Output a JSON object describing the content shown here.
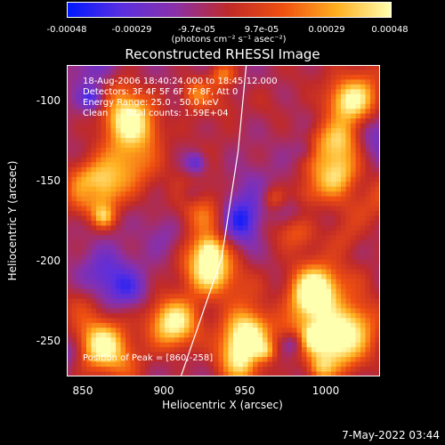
{
  "colorbar": {
    "ticks": [
      "-0.00048",
      "-0.00029",
      "-9.7e-05",
      "9.7e-05",
      "0.00029",
      "0.00048"
    ],
    "tick_values": [
      -0.00048,
      -0.00029,
      -9.7e-05,
      9.7e-05,
      0.00029,
      0.00048
    ],
    "unit": "(photons cm⁻² s⁻¹ asec⁻²)",
    "colors": [
      "#0018ff",
      "#5a2fe0",
      "#8a30a8",
      "#c02a28",
      "#f05010",
      "#ffb020",
      "#ffffb0"
    ]
  },
  "chart_data": {
    "type": "heatmap",
    "title": "Reconstructed RHESSI Image",
    "xlabel": "Heliocentric X (arcsec)",
    "ylabel": "Heliocentric Y (arcsec)",
    "xlim": [
      840,
      1032
    ],
    "ylim": [
      -273,
      -82
    ],
    "xticks": [
      850,
      900,
      950,
      1000
    ],
    "yticks": [
      -100,
      -150,
      -200,
      -250
    ],
    "limb_line": [
      [
        910,
        -273
      ],
      [
        935,
        -200
      ],
      [
        945,
        -135
      ],
      [
        950,
        -82
      ]
    ],
    "annotations": [
      "18-Aug-2006 18:40:24.000 to 18:45:12.000",
      "Detectors: 3F 4F 5F 6F 7F 8F, Att 0",
      "Energy Range: 25.0 - 50.0 keV",
      "Clean      Total counts: 1.59E+04"
    ],
    "peak_label": "Position of Peak = [860,-258]",
    "peak": [
      860,
      -258
    ]
  },
  "timestamp": "7-May-2022 03:44"
}
